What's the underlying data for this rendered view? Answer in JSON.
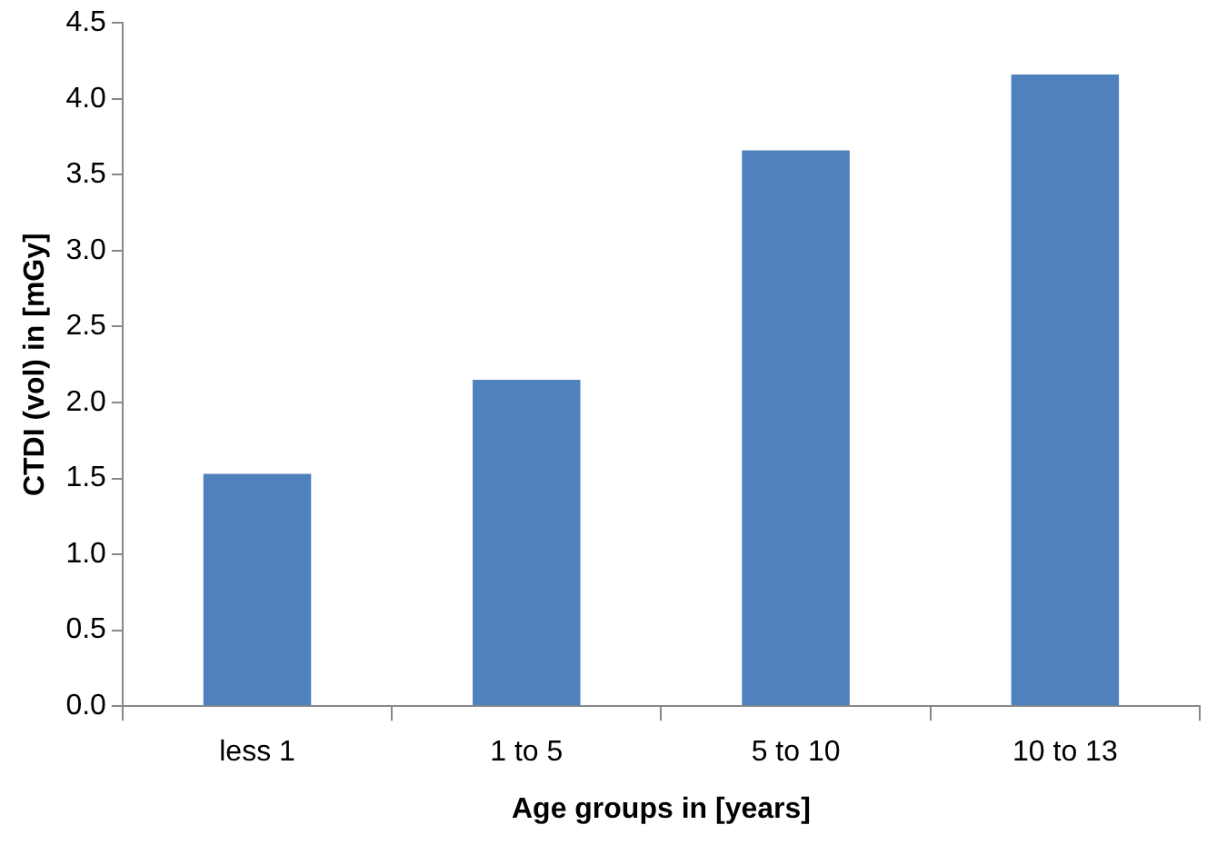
{
  "chart_data": {
    "type": "bar",
    "xlabel": "Age groups in [years]",
    "ylabel": "CTDI (vol) in [mGy]",
    "categories": [
      "less 1",
      "1 to 5",
      "5 to 10",
      "10 to 13"
    ],
    "values": [
      1.53,
      2.15,
      3.66,
      4.16
    ],
    "color": "#4f81bd",
    "ylim": [
      0,
      4.5
    ],
    "yticks": [
      {
        "value": 0,
        "label": "0.0"
      },
      0.5,
      {
        "value": 1,
        "label": "1.0"
      },
      1.5,
      {
        "value": 2,
        "label": "2.0"
      },
      2.5,
      {
        "value": 3,
        "label": "3.0"
      },
      3.5,
      {
        "value": 4,
        "label": "4.0"
      },
      4.5
    ],
    "grid": false,
    "legend": false
  }
}
